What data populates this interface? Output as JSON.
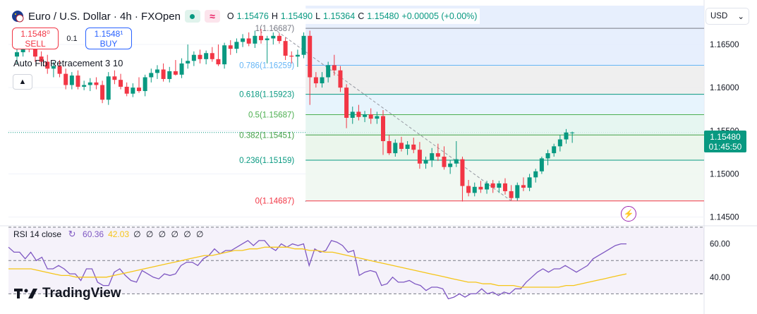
{
  "header": {
    "title": "Euro / U.S. Dollar · 4h · FXOpen",
    "open_label": "O",
    "open": "1.15476",
    "high_label": "H",
    "high": "1.15490",
    "low_label": "L",
    "low": "1.15364",
    "close_label": "C",
    "close": "1.15480",
    "change": "+0.00005 (+0.00%)",
    "market_status_icon": "market-open-dot-icon",
    "data_icon": "approx-wave-icon"
  },
  "trade": {
    "sell_price": "1.1548⁰",
    "sell_label": "SELL",
    "spread": "0.1",
    "buy_price": "1.1548¹",
    "buy_label": "BUY"
  },
  "indicator_label": "Auto Fib Retracement 3 10",
  "currency": "USD",
  "last_price": {
    "price": "1.15480",
    "countdown": "01:45:50"
  },
  "rsi": {
    "label": "RSI 14 close",
    "value": "60.36",
    "ma_value": "42.03",
    "placeholders": "∅ ∅ ∅ ∅ ∅ ∅"
  },
  "logo": "TradingView",
  "colors": {
    "up": "#089981",
    "down": "#f23645",
    "rsi": "#7e57c2",
    "rsi_ma": "#f5c518",
    "accent": "#2962ff"
  },
  "chart_data": [
    {
      "type": "candlestick",
      "title": "Euro / U.S. Dollar · 4h · FXOpen",
      "ylim": [
        1.145,
        1.169
      ],
      "y_ticks": [
        1.165,
        1.16,
        1.155,
        1.15,
        1.145
      ],
      "y_tick_labels": [
        "1.16500",
        "1.16000",
        "1.15500",
        "1.15000",
        "1.14500"
      ],
      "candles": [
        {
          "o": 1.1636,
          "h": 1.1648,
          "l": 1.1628,
          "c": 1.1641
        },
        {
          "o": 1.1641,
          "h": 1.1657,
          "l": 1.1636,
          "c": 1.1652
        },
        {
          "o": 1.1652,
          "h": 1.1662,
          "l": 1.1641,
          "c": 1.1646
        },
        {
          "o": 1.1646,
          "h": 1.1652,
          "l": 1.163,
          "c": 1.1636
        },
        {
          "o": 1.1636,
          "h": 1.1642,
          "l": 1.1625,
          "c": 1.163
        },
        {
          "o": 1.163,
          "h": 1.1638,
          "l": 1.1616,
          "c": 1.1622
        },
        {
          "o": 1.1622,
          "h": 1.163,
          "l": 1.1612,
          "c": 1.1625
        },
        {
          "o": 1.1625,
          "h": 1.1632,
          "l": 1.1612,
          "c": 1.1616
        },
        {
          "o": 1.1616,
          "h": 1.1622,
          "l": 1.1598,
          "c": 1.1603
        },
        {
          "o": 1.1603,
          "h": 1.1618,
          "l": 1.1598,
          "c": 1.1614
        },
        {
          "o": 1.1614,
          "h": 1.162,
          "l": 1.1598,
          "c": 1.1601
        },
        {
          "o": 1.1601,
          "h": 1.1608,
          "l": 1.1597,
          "c": 1.1603
        },
        {
          "o": 1.1603,
          "h": 1.1611,
          "l": 1.1596,
          "c": 1.1606
        },
        {
          "o": 1.1606,
          "h": 1.1612,
          "l": 1.1598,
          "c": 1.1603
        },
        {
          "o": 1.1603,
          "h": 1.1608,
          "l": 1.1582,
          "c": 1.1586
        },
        {
          "o": 1.1586,
          "h": 1.1618,
          "l": 1.158,
          "c": 1.1613
        },
        {
          "o": 1.1613,
          "h": 1.162,
          "l": 1.1604,
          "c": 1.1609
        },
        {
          "o": 1.1609,
          "h": 1.1616,
          "l": 1.1598,
          "c": 1.1601
        },
        {
          "o": 1.1601,
          "h": 1.1606,
          "l": 1.159,
          "c": 1.1593
        },
        {
          "o": 1.1593,
          "h": 1.1605,
          "l": 1.1589,
          "c": 1.16
        },
        {
          "o": 1.16,
          "h": 1.1612,
          "l": 1.1594,
          "c": 1.1596
        },
        {
          "o": 1.1596,
          "h": 1.1615,
          "l": 1.159,
          "c": 1.1612
        },
        {
          "o": 1.1612,
          "h": 1.1622,
          "l": 1.1606,
          "c": 1.1617
        },
        {
          "o": 1.1617,
          "h": 1.1626,
          "l": 1.161,
          "c": 1.1621
        },
        {
          "o": 1.1621,
          "h": 1.1628,
          "l": 1.1607,
          "c": 1.161
        },
        {
          "o": 1.161,
          "h": 1.1624,
          "l": 1.1606,
          "c": 1.1619
        },
        {
          "o": 1.1619,
          "h": 1.1632,
          "l": 1.1614,
          "c": 1.1615
        },
        {
          "o": 1.1615,
          "h": 1.1634,
          "l": 1.1611,
          "c": 1.1628
        },
        {
          "o": 1.1628,
          "h": 1.165,
          "l": 1.1622,
          "c": 1.1631
        },
        {
          "o": 1.1631,
          "h": 1.1642,
          "l": 1.1625,
          "c": 1.1638
        },
        {
          "o": 1.1638,
          "h": 1.1644,
          "l": 1.1628,
          "c": 1.1633
        },
        {
          "o": 1.1633,
          "h": 1.1643,
          "l": 1.1627,
          "c": 1.164
        },
        {
          "o": 1.164,
          "h": 1.1647,
          "l": 1.163,
          "c": 1.1633
        },
        {
          "o": 1.1633,
          "h": 1.165,
          "l": 1.1625,
          "c": 1.1627
        },
        {
          "o": 1.1627,
          "h": 1.1652,
          "l": 1.1622,
          "c": 1.1649
        },
        {
          "o": 1.1649,
          "h": 1.1655,
          "l": 1.1638,
          "c": 1.1645
        },
        {
          "o": 1.1645,
          "h": 1.1657,
          "l": 1.164,
          "c": 1.1653
        },
        {
          "o": 1.1653,
          "h": 1.1662,
          "l": 1.1647,
          "c": 1.1657
        },
        {
          "o": 1.1657,
          "h": 1.1664,
          "l": 1.1648,
          "c": 1.1651
        },
        {
          "o": 1.1651,
          "h": 1.1666,
          "l": 1.1646,
          "c": 1.166
        },
        {
          "o": 1.166,
          "h": 1.1668,
          "l": 1.1651,
          "c": 1.1655
        },
        {
          "o": 1.1655,
          "h": 1.166,
          "l": 1.1628,
          "c": 1.1657
        },
        {
          "o": 1.1657,
          "h": 1.1664,
          "l": 1.165,
          "c": 1.166
        },
        {
          "o": 1.166,
          "h": 1.1663,
          "l": 1.1651,
          "c": 1.1654
        },
        {
          "o": 1.1654,
          "h": 1.1658,
          "l": 1.1632,
          "c": 1.1637
        },
        {
          "o": 1.1637,
          "h": 1.1642,
          "l": 1.1628,
          "c": 1.1636
        },
        {
          "o": 1.1636,
          "h": 1.1644,
          "l": 1.1624,
          "c": 1.1638
        },
        {
          "o": 1.1638,
          "h": 1.1664,
          "l": 1.1634,
          "c": 1.166
        },
        {
          "o": 1.166,
          "h": 1.1666,
          "l": 1.158,
          "c": 1.1612
        },
        {
          "o": 1.1612,
          "h": 1.1618,
          "l": 1.16,
          "c": 1.1605
        },
        {
          "o": 1.1605,
          "h": 1.1618,
          "l": 1.16,
          "c": 1.1612
        },
        {
          "o": 1.1612,
          "h": 1.163,
          "l": 1.1606,
          "c": 1.1626
        },
        {
          "o": 1.1626,
          "h": 1.1638,
          "l": 1.1614,
          "c": 1.162
        },
        {
          "o": 1.162,
          "h": 1.1625,
          "l": 1.1595,
          "c": 1.16
        },
        {
          "o": 1.16,
          "h": 1.1604,
          "l": 1.1553,
          "c": 1.1565
        },
        {
          "o": 1.1565,
          "h": 1.1578,
          "l": 1.1558,
          "c": 1.1572
        },
        {
          "o": 1.1572,
          "h": 1.158,
          "l": 1.1562,
          "c": 1.1566
        },
        {
          "o": 1.1566,
          "h": 1.1573,
          "l": 1.156,
          "c": 1.1569
        },
        {
          "o": 1.1569,
          "h": 1.1576,
          "l": 1.1558,
          "c": 1.1564
        },
        {
          "o": 1.1564,
          "h": 1.1572,
          "l": 1.1558,
          "c": 1.1567
        },
        {
          "o": 1.1567,
          "h": 1.1574,
          "l": 1.1522,
          "c": 1.1538
        },
        {
          "o": 1.1538,
          "h": 1.1545,
          "l": 1.1522,
          "c": 1.1524
        },
        {
          "o": 1.1524,
          "h": 1.154,
          "l": 1.152,
          "c": 1.1536
        },
        {
          "o": 1.1536,
          "h": 1.1543,
          "l": 1.1526,
          "c": 1.1529
        },
        {
          "o": 1.1529,
          "h": 1.1538,
          "l": 1.1522,
          "c": 1.1534
        },
        {
          "o": 1.1534,
          "h": 1.1542,
          "l": 1.1524,
          "c": 1.1528
        },
        {
          "o": 1.1528,
          "h": 1.1537,
          "l": 1.1506,
          "c": 1.1512
        },
        {
          "o": 1.1512,
          "h": 1.152,
          "l": 1.1506,
          "c": 1.1516
        },
        {
          "o": 1.1516,
          "h": 1.153,
          "l": 1.1508,
          "c": 1.1524
        },
        {
          "o": 1.1524,
          "h": 1.1535,
          "l": 1.1515,
          "c": 1.152
        },
        {
          "o": 1.152,
          "h": 1.1532,
          "l": 1.1505,
          "c": 1.1508
        },
        {
          "o": 1.1508,
          "h": 1.1516,
          "l": 1.15,
          "c": 1.1512
        },
        {
          "o": 1.1512,
          "h": 1.1538,
          "l": 1.1508,
          "c": 1.1517
        },
        {
          "o": 1.1517,
          "h": 1.152,
          "l": 1.1468,
          "c": 1.1486
        },
        {
          "o": 1.1486,
          "h": 1.1493,
          "l": 1.1474,
          "c": 1.1478
        },
        {
          "o": 1.1478,
          "h": 1.149,
          "l": 1.1474,
          "c": 1.1485
        },
        {
          "o": 1.1485,
          "h": 1.1492,
          "l": 1.1478,
          "c": 1.1482
        },
        {
          "o": 1.1482,
          "h": 1.1492,
          "l": 1.1477,
          "c": 1.1489
        },
        {
          "o": 1.1489,
          "h": 1.1493,
          "l": 1.1478,
          "c": 1.1484
        },
        {
          "o": 1.1484,
          "h": 1.1492,
          "l": 1.1478,
          "c": 1.1489
        },
        {
          "o": 1.1489,
          "h": 1.1495,
          "l": 1.1476,
          "c": 1.148
        },
        {
          "o": 1.148,
          "h": 1.1487,
          "l": 1.1469,
          "c": 1.1472
        },
        {
          "o": 1.1472,
          "h": 1.149,
          "l": 1.1469,
          "c": 1.1487
        },
        {
          "o": 1.1487,
          "h": 1.1496,
          "l": 1.148,
          "c": 1.1484
        },
        {
          "o": 1.1484,
          "h": 1.15,
          "l": 1.148,
          "c": 1.1496
        },
        {
          "o": 1.1496,
          "h": 1.1506,
          "l": 1.149,
          "c": 1.1503
        },
        {
          "o": 1.1503,
          "h": 1.152,
          "l": 1.15,
          "c": 1.1518
        },
        {
          "o": 1.1518,
          "h": 1.1528,
          "l": 1.151,
          "c": 1.1524
        },
        {
          "o": 1.1524,
          "h": 1.1535,
          "l": 1.152,
          "c": 1.1532
        },
        {
          "o": 1.1532,
          "h": 1.1545,
          "l": 1.1526,
          "c": 1.154
        },
        {
          "o": 1.154,
          "h": 1.1552,
          "l": 1.1535,
          "c": 1.1548
        },
        {
          "o": 1.1548,
          "h": 1.1549,
          "l": 1.1536,
          "c": 1.1548
        }
      ],
      "fib_levels": [
        {
          "ratio": 1,
          "price": 1.16687,
          "label": "1(1.16687)"
        },
        {
          "ratio": 0.786,
          "price": 1.16259,
          "label": "0.786(1.16259)"
        },
        {
          "ratio": 0.618,
          "price": 1.15923,
          "label": "0.618(1.15923)"
        },
        {
          "ratio": 0.5,
          "price": 1.15687,
          "label": "0.5(1.15687)"
        },
        {
          "ratio": 0.382,
          "price": 1.15451,
          "label": "0.382(1.15451)"
        },
        {
          "ratio": 0.236,
          "price": 1.15159,
          "label": "0.236(1.15159)"
        },
        {
          "ratio": 0,
          "price": 1.14687,
          "label": "0(1.14687)"
        }
      ],
      "fib_trend_line": {
        "from_candle": 42,
        "from_price": 1.16687,
        "to_candle": 81,
        "to_price": 1.14687
      },
      "last_price": 1.1548
    },
    {
      "type": "line",
      "title": "RSI 14 close",
      "ylim": [
        20,
        70
      ],
      "y_ticks": [
        60,
        40
      ],
      "y_tick_labels": [
        "60.00",
        "40.00"
      ],
      "bands": [
        70,
        50,
        30
      ],
      "series": [
        {
          "name": "RSI",
          "values": [
            58,
            55,
            55,
            51,
            55,
            50,
            52,
            45,
            45,
            47,
            45,
            42,
            42,
            38,
            45,
            45,
            37,
            35,
            35,
            43,
            45,
            41,
            38,
            37,
            44,
            42,
            40,
            39,
            42,
            41,
            42,
            47,
            49,
            49,
            47,
            51,
            53,
            57,
            54,
            56,
            56,
            58,
            60,
            62,
            59,
            62,
            62,
            58,
            56,
            60,
            58,
            60,
            59,
            60,
            47,
            57,
            55,
            56,
            62,
            61,
            59,
            55,
            56,
            41,
            43,
            44,
            43,
            35,
            36,
            40,
            37,
            37,
            38,
            36,
            35,
            32,
            34,
            34,
            33,
            27,
            28,
            30,
            28,
            30,
            30,
            33,
            30,
            31,
            29,
            31,
            30,
            33,
            33,
            37,
            40,
            43,
            45,
            43,
            45,
            45,
            47,
            45,
            43,
            45,
            47,
            51,
            53,
            55,
            57,
            59,
            60,
            60
          ]
        },
        {
          "name": "RSI-based MA",
          "values": [
            45,
            45,
            45,
            45,
            44,
            43,
            42,
            41,
            41,
            40,
            40,
            40,
            40,
            40,
            41,
            42,
            43,
            44,
            45,
            46,
            47,
            48,
            49,
            50,
            51,
            52,
            53,
            53,
            54,
            55,
            56,
            56,
            57,
            57,
            58,
            58,
            58,
            58,
            57,
            57,
            56,
            56,
            55,
            55,
            54,
            53,
            52,
            51,
            50,
            49,
            48,
            47,
            46,
            45,
            44,
            43,
            42,
            41,
            40,
            39,
            38,
            37,
            37,
            36,
            36,
            35,
            35,
            35,
            34,
            34,
            34,
            34,
            34,
            34,
            35,
            35,
            36,
            37,
            38,
            39,
            40,
            41,
            42
          ]
        }
      ]
    }
  ]
}
